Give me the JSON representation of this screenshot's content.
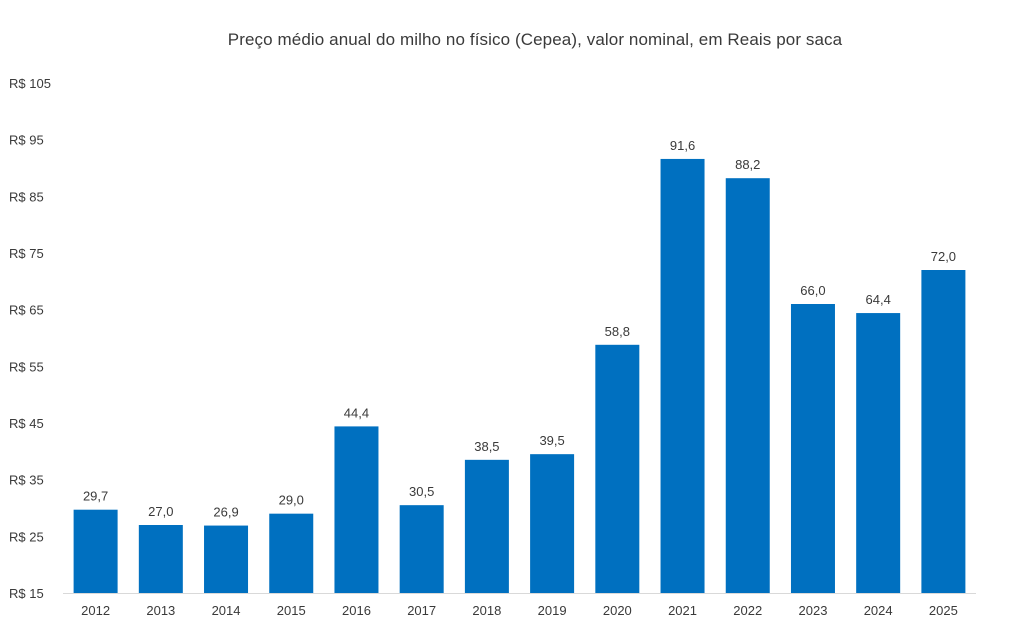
{
  "chart_data": {
    "type": "bar",
    "title": "Preço médio anual do milho no físico (Cepea), valor nominal, em Reais por saca",
    "xlabel": "",
    "ylabel": "",
    "categories": [
      "2012",
      "2013",
      "2014",
      "2015",
      "2016",
      "2017",
      "2018",
      "2019",
      "2020",
      "2021",
      "2022",
      "2023",
      "2024",
      "2025"
    ],
    "values": [
      29.7,
      27.0,
      26.9,
      29.0,
      44.4,
      30.5,
      38.5,
      39.5,
      58.8,
      91.6,
      88.2,
      66.0,
      64.4,
      72.0
    ],
    "data_labels": [
      "29,7",
      "27,0",
      "26,9",
      "29,0",
      "44,4",
      "30,5",
      "38,5",
      "39,5",
      "58,8",
      "91,6",
      "88,2",
      "66,0",
      "64,4",
      "72,0"
    ],
    "ylim": [
      15,
      105
    ],
    "y_ticks": [
      15,
      25,
      35,
      45,
      55,
      65,
      75,
      85,
      95,
      105
    ],
    "y_tick_labels": [
      "R$ 15",
      "R$ 25",
      "R$ 35",
      "R$ 45",
      "R$ 55",
      "R$ 65",
      "R$ 75",
      "R$ 85",
      "R$ 95",
      "R$ 105"
    ],
    "grid": false,
    "legend": "none",
    "bar_color": "#0070C0"
  }
}
